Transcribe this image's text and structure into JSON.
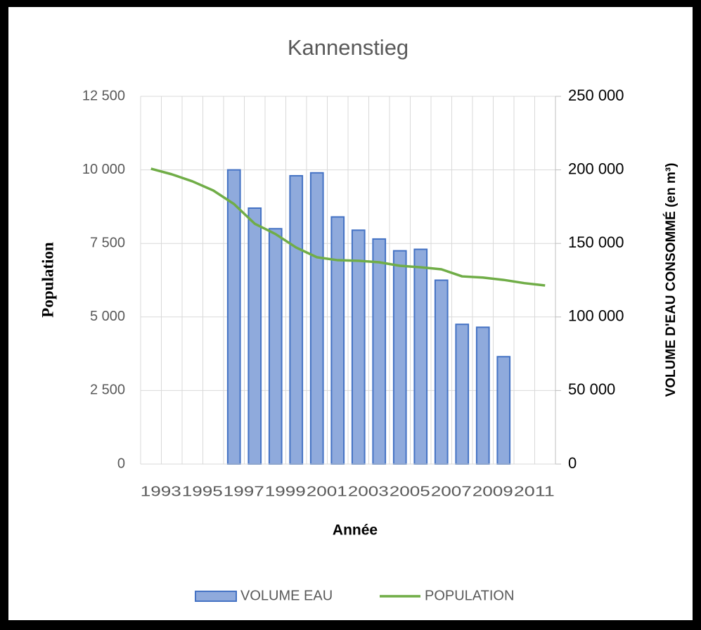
{
  "chart_data": {
    "type": "bar",
    "title": "Kannenstieg",
    "x_label": "Année",
    "y_label": "Population",
    "y2_label": "VOLUME D'EAU CONSOMMÉ (en m³)",
    "categories": [
      "1993",
      null,
      "1995",
      null,
      "1997",
      null,
      "1999",
      null,
      "2001",
      null,
      "2003",
      null,
      "2005",
      null,
      "2007",
      null,
      "2009",
      null,
      "2011",
      null
    ],
    "series": [
      {
        "name": "VOLUME EAU",
        "type": "bar",
        "axis": "y2",
        "color": "#8faadc",
        "edge_color": "#4472c4",
        "values": [
          null,
          null,
          null,
          null,
          200000,
          174000,
          160000,
          196000,
          198000,
          168000,
          159000,
          153000,
          145000,
          146000,
          125000,
          95000,
          93000,
          73000,
          null,
          null
        ]
      },
      {
        "name": "POPULATION",
        "type": "line",
        "color": "#70ad47",
        "values": [
          10040,
          9850,
          9610,
          9300,
          8840,
          8170,
          7820,
          7360,
          7030,
          6930,
          6910,
          6860,
          6740,
          6690,
          6620,
          6380,
          6340,
          6260,
          6150,
          6070
        ]
      }
    ],
    "ylim": [
      0,
      12500
    ],
    "yticks": [
      0,
      {
        "value": 2500,
        "label": "2 500"
      },
      {
        "value": 5000,
        "label": "5 000"
      },
      {
        "value": 7500,
        "label": "7 500"
      },
      {
        "value": 10000,
        "label": "10 000"
      },
      {
        "value": 12500,
        "label": "12 500"
      }
    ],
    "y2lim": [
      0,
      250000
    ],
    "y2ticks": [
      0,
      {
        "value": 50000,
        "label": "50 000"
      },
      {
        "value": 100000,
        "label": "100 000"
      },
      {
        "value": 150000,
        "label": "150 000"
      },
      {
        "value": 200000,
        "label": "200 000"
      },
      {
        "value": 250000,
        "label": "250 000"
      }
    ],
    "grid": true,
    "legend": "bottom"
  }
}
